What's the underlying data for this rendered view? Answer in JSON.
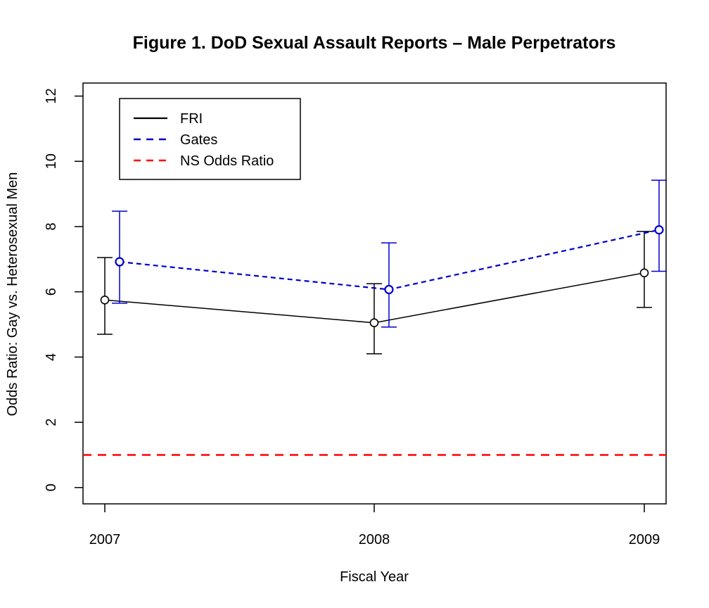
{
  "chart_data": {
    "type": "line",
    "title": "Figure 1. DoD Sexual Assault Reports – Male Perpetrators",
    "xlabel": "Fiscal Year",
    "ylabel": "Odds Ratio: Gay vs. Heterosexual Men",
    "categories": [
      "2007",
      "2008",
      "2009"
    ],
    "ylim": [
      -0.5,
      12.4
    ],
    "yticks": [
      0,
      2,
      4,
      6,
      8,
      10,
      12
    ],
    "grid": false,
    "legend_position": "top-left",
    "series": [
      {
        "name": "FRI",
        "color": "#000000",
        "line_style": "solid",
        "values": [
          5.75,
          5.05,
          6.58
        ],
        "lower": [
          4.7,
          4.1,
          5.52
        ],
        "upper": [
          7.05,
          6.25,
          7.85
        ]
      },
      {
        "name": "Gates",
        "color": "#0000cc",
        "line_style": "dashed",
        "values": [
          6.92,
          6.07,
          7.9
        ],
        "lower": [
          5.65,
          4.92,
          6.63
        ],
        "upper": [
          8.47,
          7.5,
          9.42
        ]
      }
    ],
    "reference_line": {
      "name": "NS Odds Ratio",
      "value": 1,
      "color": "#ff0000",
      "line_style": "dashed"
    }
  }
}
